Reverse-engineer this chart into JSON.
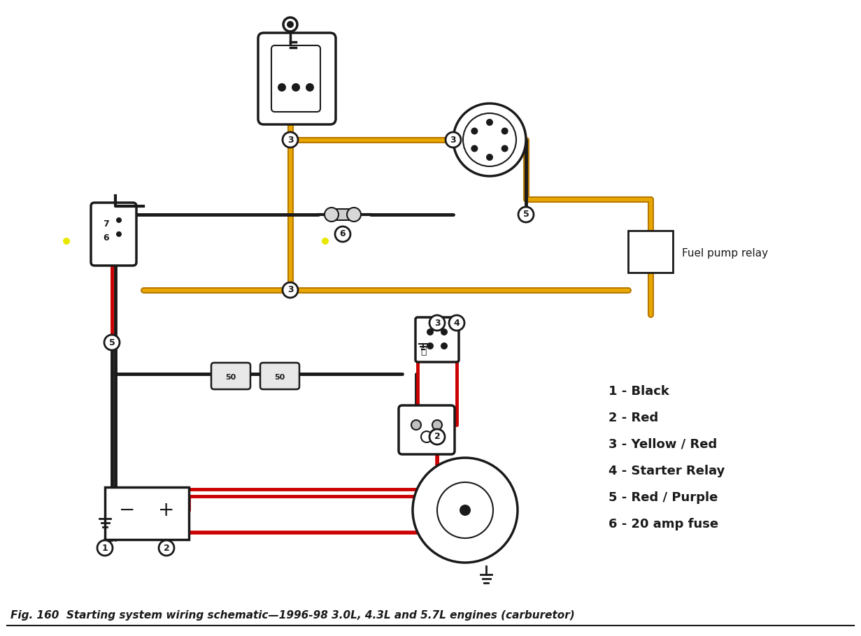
{
  "title": "Fig. 160  Starting system wiring schematic—1996-98 3.0L, 4.3L and 5.7L engines (carburetor)",
  "bg_color": "#ffffff",
  "legend_items": [
    "1 - Black",
    "2 - Red",
    "3 - Yellow / Red",
    "4 - Starter Relay",
    "5 - Red / Purple",
    "6 - 20 amp fuse"
  ],
  "fuel_pump_relay_label": "Fuel pump relay",
  "wire_bk": "#1a1a1a",
  "wire_rd": "#cc0000",
  "wire_yr_dark": "#b87800",
  "wire_yr_light": "#e8a800",
  "lw_wire": 3.5
}
